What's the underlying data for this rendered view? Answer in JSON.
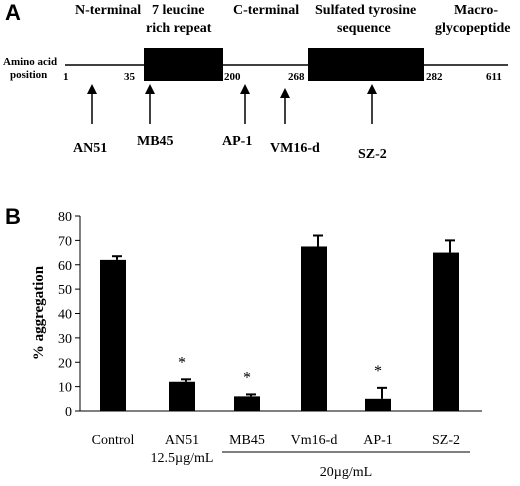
{
  "panel_a": {
    "letter": "A",
    "domain_labels": [
      {
        "lines": [
          "N-terminal"
        ]
      },
      {
        "lines": [
          "7 leucine",
          "rich repeat"
        ]
      },
      {
        "lines": [
          "C-terminal"
        ]
      },
      {
        "lines": [
          "Sulfated tyrosine",
          "sequence"
        ]
      },
      {
        "lines": [
          "Macro-",
          "glycopeptide"
        ]
      }
    ],
    "axis_label_lines": [
      "Amino acid",
      "position"
    ],
    "positions": [
      "1",
      "35",
      "200",
      "268",
      "282",
      "611"
    ],
    "antibodies": [
      "AN51",
      "MB45",
      "AP-1",
      "VM16-d",
      "SZ-2"
    ]
  },
  "panel_b": {
    "letter": "B",
    "group_label": "20µg/mL",
    "sublabel_an51": "12.5µg/mL"
  },
  "chart_data": {
    "type": "bar",
    "categories": [
      "Control",
      "AN51",
      "MB45",
      "Vm16-d",
      "AP-1",
      "SZ-2"
    ],
    "values": [
      62,
      12,
      6,
      67.5,
      5,
      65
    ],
    "errors": [
      1.5,
      1,
      0.8,
      4.5,
      4.5,
      5
    ],
    "significance": [
      "",
      "*",
      "*",
      "",
      "*",
      ""
    ],
    "ylabel": "% aggregation",
    "ylim": [
      0,
      80
    ],
    "yticks": [
      "0",
      "10",
      "20",
      "30",
      "40",
      "50",
      "60",
      "70",
      "80"
    ],
    "grid": false
  }
}
